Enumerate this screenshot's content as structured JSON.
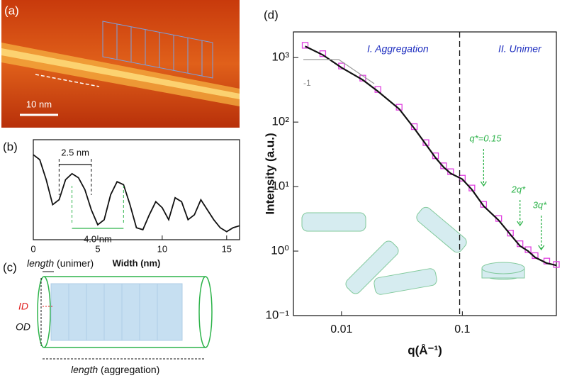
{
  "panels": {
    "a": "(a)",
    "b": "(b)",
    "c": "(c)",
    "d": "(d)"
  },
  "afm": {
    "scale_bar": "10 nm"
  },
  "diagram": {
    "unimer_length": "length",
    "unimer_note": "(unimer)",
    "id": "ID",
    "od": "OD",
    "aggregation_length": "length",
    "aggregation_note": "(aggregation)"
  },
  "chart_data": [
    {
      "type": "line",
      "xlabel": "Width (nm)",
      "x": [
        0,
        0.5,
        1,
        1.5,
        2,
        2.5,
        3,
        3.5,
        4,
        4.5,
        5,
        5.5,
        6,
        6.5,
        7,
        7.5,
        8,
        8.5,
        9,
        9.5,
        10,
        10.5,
        11,
        11.5,
        12,
        12.5,
        13,
        13.5,
        14,
        14.5,
        15,
        15.5,
        16
      ],
      "series": [
        {
          "color": "#111111",
          "values": [
            0.85,
            0.8,
            0.6,
            0.35,
            0.4,
            0.6,
            0.66,
            0.62,
            0.5,
            0.3,
            0.15,
            0.2,
            0.45,
            0.58,
            0.55,
            0.35,
            0.12,
            0.1,
            0.25,
            0.38,
            0.32,
            0.2,
            0.42,
            0.38,
            0.2,
            0.25,
            0.4,
            0.3,
            0.2,
            0.12,
            0.08,
            0.12,
            0.14
          ]
        }
      ],
      "xlim": [
        0,
        16
      ],
      "xticks": [
        0,
        5,
        10,
        15
      ],
      "ylim": [
        0,
        1
      ],
      "spans": [
        {
          "label": "2.5 nm",
          "from": 2,
          "to": 4.5,
          "color": "#111111"
        },
        {
          "label": "4.0 nm",
          "from": 3,
          "to": 7,
          "color": "#2db34a"
        }
      ]
    },
    {
      "type": "line",
      "xlabel": "q(Å⁻¹)",
      "ylabel": "Intensity (a.u.)",
      "xscale": "log",
      "yscale": "log",
      "x": [
        0.005,
        0.007,
        0.01,
        0.015,
        0.02,
        0.03,
        0.04,
        0.05,
        0.06,
        0.07,
        0.08,
        0.1,
        0.12,
        0.15,
        0.2,
        0.25,
        0.3,
        0.35,
        0.4,
        0.5,
        0.6
      ],
      "series": [
        {
          "color": "#111111",
          "values": [
            1500,
            1100,
            700,
            450,
            300,
            160,
            80,
            45,
            28,
            20,
            16,
            13,
            9,
            5,
            3,
            1.8,
            1.2,
            1.0,
            0.8,
            0.65,
            0.6
          ]
        },
        {
          "color": "#e040e0",
          "marker": "square",
          "values": [
            1550,
            1150,
            740,
            480,
            320,
            170,
            85,
            48,
            30,
            21,
            17,
            13.5,
            9.5,
            5.3,
            3.2,
            1.9,
            1.3,
            1.05,
            0.85,
            0.7,
            0.62
          ]
        }
      ],
      "xlim": [
        0.004,
        0.6
      ],
      "ylim": [
        0.1,
        2500
      ],
      "xticks": [
        0.01,
        0.1
      ],
      "yticks": [
        {
          "value": 0.1,
          "label": "10⁻¹"
        },
        {
          "value": 1,
          "label": "10⁰"
        },
        {
          "value": 10,
          "label": "10¹"
        },
        {
          "value": 100,
          "label": "10²"
        },
        {
          "value": 1000,
          "label": "10³"
        }
      ],
      "regions": [
        "I. Aggregation",
        "II. Unimer"
      ],
      "divider": 0.095,
      "peaks": [
        {
          "q": 0.15,
          "label": "q*=0.15"
        },
        {
          "q": 0.3,
          "label": "2q*"
        },
        {
          "q": 0.45,
          "label": "3q*"
        }
      ],
      "slope_label": "-1"
    }
  ]
}
